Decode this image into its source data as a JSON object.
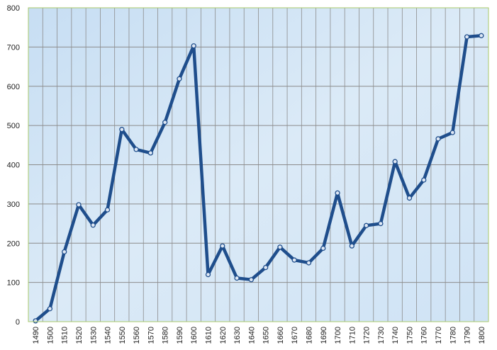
{
  "chart_data": {
    "type": "line",
    "title": "",
    "xlabel": "",
    "ylabel": "",
    "x": [
      1490,
      1500,
      1510,
      1520,
      1530,
      1540,
      1550,
      1560,
      1570,
      1580,
      1590,
      1600,
      1610,
      1620,
      1630,
      1640,
      1650,
      1660,
      1670,
      1680,
      1690,
      1700,
      1710,
      1720,
      1730,
      1740,
      1750,
      1760,
      1770,
      1780,
      1790,
      1800
    ],
    "series": [
      {
        "values": [
          2,
          33,
          178,
          298,
          246,
          285,
          490,
          439,
          430,
          508,
          619,
          703,
          120,
          193,
          111,
          107,
          138,
          190,
          157,
          150,
          187,
          328,
          193,
          245,
          250,
          408,
          315,
          361,
          466,
          482,
          726,
          729
        ]
      }
    ],
    "ylim": [
      0,
      800
    ],
    "yticks": [
      0,
      100,
      200,
      300,
      400,
      500,
      600,
      700,
      800
    ],
    "grid": true,
    "legend": "none",
    "colors": {
      "line": "#1f4e8c",
      "marker_fill": "#dfe8f5",
      "plot_bg": "#d3e6f6",
      "grid": "#8c8c8c",
      "frame": "#a9c96a"
    }
  }
}
